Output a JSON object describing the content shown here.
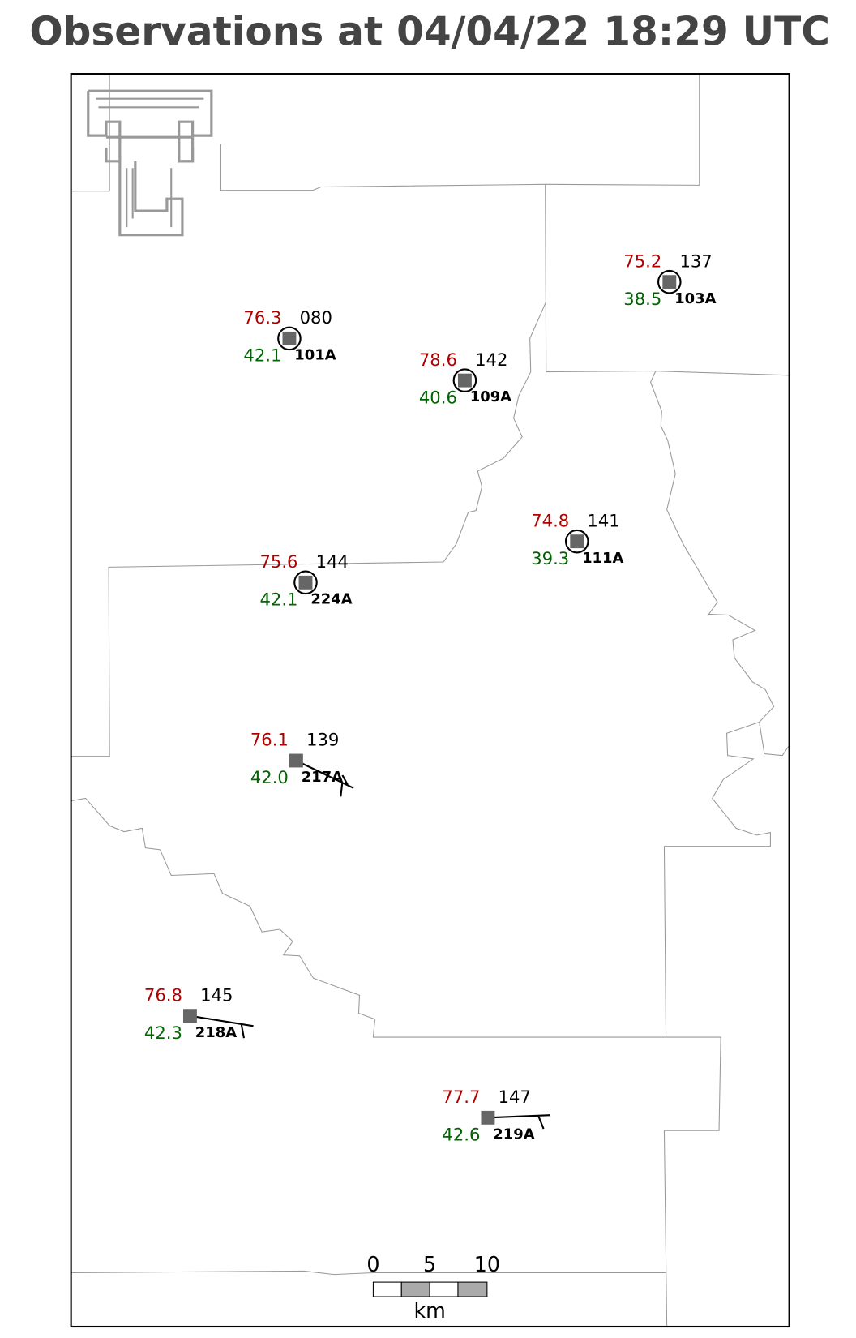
{
  "title": "Observations at 04/04/22 18:29 UTC",
  "stations": [
    {
      "id": "101A",
      "temperature": "76.3",
      "dewpoint": "42.1",
      "pressure": "080"
    },
    {
      "id": "109A",
      "temperature": "78.6",
      "dewpoint": "40.6",
      "pressure": "142"
    },
    {
      "id": "103A",
      "temperature": "75.2",
      "dewpoint": "38.5",
      "pressure": "137"
    },
    {
      "id": "111A",
      "temperature": "74.8",
      "dewpoint": "39.3",
      "pressure": "141"
    },
    {
      "id": "224A",
      "temperature": "75.6",
      "dewpoint": "42.1",
      "pressure": "144"
    },
    {
      "id": "217A",
      "temperature": "76.1",
      "dewpoint": "42.0",
      "pressure": "139"
    },
    {
      "id": "218A",
      "temperature": "76.8",
      "dewpoint": "42.3",
      "pressure": "145"
    },
    {
      "id": "219A",
      "temperature": "77.7",
      "dewpoint": "42.6",
      "pressure": "147"
    }
  ],
  "scale_bar": {
    "ticks": [
      0,
      5,
      10
    ],
    "unit": "km"
  }
}
